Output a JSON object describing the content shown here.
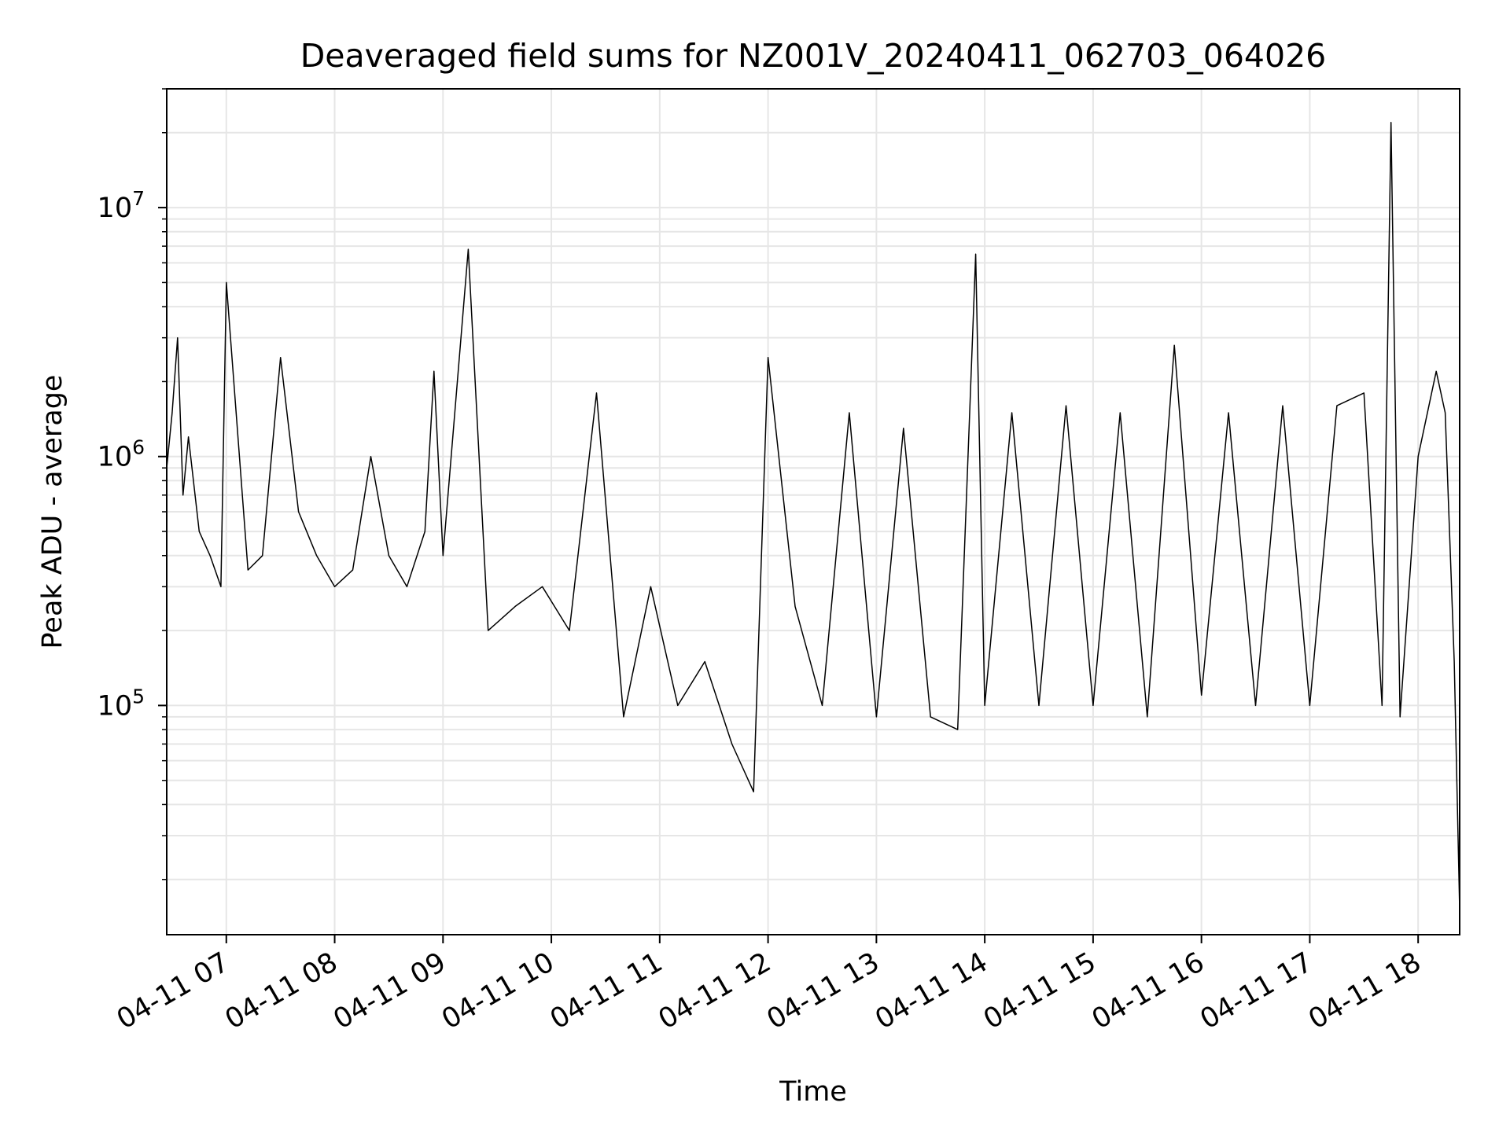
{
  "chart_data": {
    "type": "line",
    "title": "Deaveraged field sums for NZ001V_20240411_062703_064026",
    "xlabel": "Time",
    "ylabel": "Peak ADU - average",
    "xlim": [
      "2024-04-11 06:27",
      "2024-04-11 18:23"
    ],
    "ylim": [
      12000,
      30000000
    ],
    "yscale": "log",
    "grid": true,
    "line_color": "#000000",
    "x_tick_labels": [
      "04-11 07",
      "04-11 08",
      "04-11 09",
      "04-11 10",
      "04-11 11",
      "04-11 12",
      "04-11 13",
      "04-11 14",
      "04-11 15",
      "04-11 16",
      "04-11 17",
      "04-11 18"
    ],
    "x_tick_values": [
      "2024-04-11 07:00",
      "2024-04-11 08:00",
      "2024-04-11 09:00",
      "2024-04-11 10:00",
      "2024-04-11 11:00",
      "2024-04-11 12:00",
      "2024-04-11 13:00",
      "2024-04-11 14:00",
      "2024-04-11 15:00",
      "2024-04-11 16:00",
      "2024-04-11 17:00",
      "2024-04-11 18:00"
    ],
    "y_ticks": [
      {
        "base": "10",
        "exp": "5",
        "value": 100000
      },
      {
        "base": "10",
        "exp": "6",
        "value": 1000000
      },
      {
        "base": "10",
        "exp": "7",
        "value": 10000000
      }
    ],
    "series": [
      {
        "x": [
          "2024-04-11 06:27",
          "2024-04-11 06:30",
          "2024-04-11 06:33",
          "2024-04-11 06:36",
          "2024-04-11 06:39",
          "2024-04-11 06:45",
          "2024-04-11 06:51",
          "2024-04-11 06:57",
          "2024-04-11 07:00",
          "2024-04-11 07:12",
          "2024-04-11 07:20",
          "2024-04-11 07:30",
          "2024-04-11 07:40",
          "2024-04-11 07:50",
          "2024-04-11 08:00",
          "2024-04-11 08:10",
          "2024-04-11 08:20",
          "2024-04-11 08:30",
          "2024-04-11 08:40",
          "2024-04-11 08:50",
          "2024-04-11 08:55",
          "2024-04-11 09:00",
          "2024-04-11 09:14",
          "2024-04-11 09:25",
          "2024-04-11 09:40",
          "2024-04-11 09:55",
          "2024-04-11 10:10",
          "2024-04-11 10:25",
          "2024-04-11 10:40",
          "2024-04-11 10:55",
          "2024-04-11 11:10",
          "2024-04-11 11:25",
          "2024-04-11 11:40",
          "2024-04-11 11:52",
          "2024-04-11 12:00",
          "2024-04-11 12:15",
          "2024-04-11 12:30",
          "2024-04-11 12:45",
          "2024-04-11 13:00",
          "2024-04-11 13:15",
          "2024-04-11 13:30",
          "2024-04-11 13:45",
          "2024-04-11 13:55",
          "2024-04-11 14:00",
          "2024-04-11 14:15",
          "2024-04-11 14:30",
          "2024-04-11 14:45",
          "2024-04-11 15:00",
          "2024-04-11 15:15",
          "2024-04-11 15:30",
          "2024-04-11 15:45",
          "2024-04-11 16:00",
          "2024-04-11 16:15",
          "2024-04-11 16:30",
          "2024-04-11 16:45",
          "2024-04-11 17:00",
          "2024-04-11 17:15",
          "2024-04-11 17:30",
          "2024-04-11 17:40",
          "2024-04-11 17:45",
          "2024-04-11 17:50",
          "2024-04-11 18:00",
          "2024-04-11 18:10",
          "2024-04-11 18:15",
          "2024-04-11 18:20",
          "2024-04-11 18:23"
        ],
        "y": [
          900000,
          1500000,
          3000000,
          700000,
          1200000,
          500000,
          400000,
          300000,
          5000000,
          350000,
          400000,
          2500000,
          600000,
          400000,
          300000,
          350000,
          1000000,
          400000,
          300000,
          500000,
          2200000,
          400000,
          6800000,
          200000,
          250000,
          300000,
          200000,
          1800000,
          90000,
          300000,
          100000,
          150000,
          70000,
          45000,
          2500000,
          250000,
          100000,
          1500000,
          90000,
          1300000,
          90000,
          80000,
          6500000,
          100000,
          1500000,
          100000,
          1600000,
          100000,
          1500000,
          90000,
          2800000,
          110000,
          1500000,
          100000,
          1600000,
          100000,
          1600000,
          1800000,
          100000,
          22000000,
          90000,
          1000000,
          2200000,
          1500000,
          150000,
          15000
        ]
      }
    ]
  }
}
